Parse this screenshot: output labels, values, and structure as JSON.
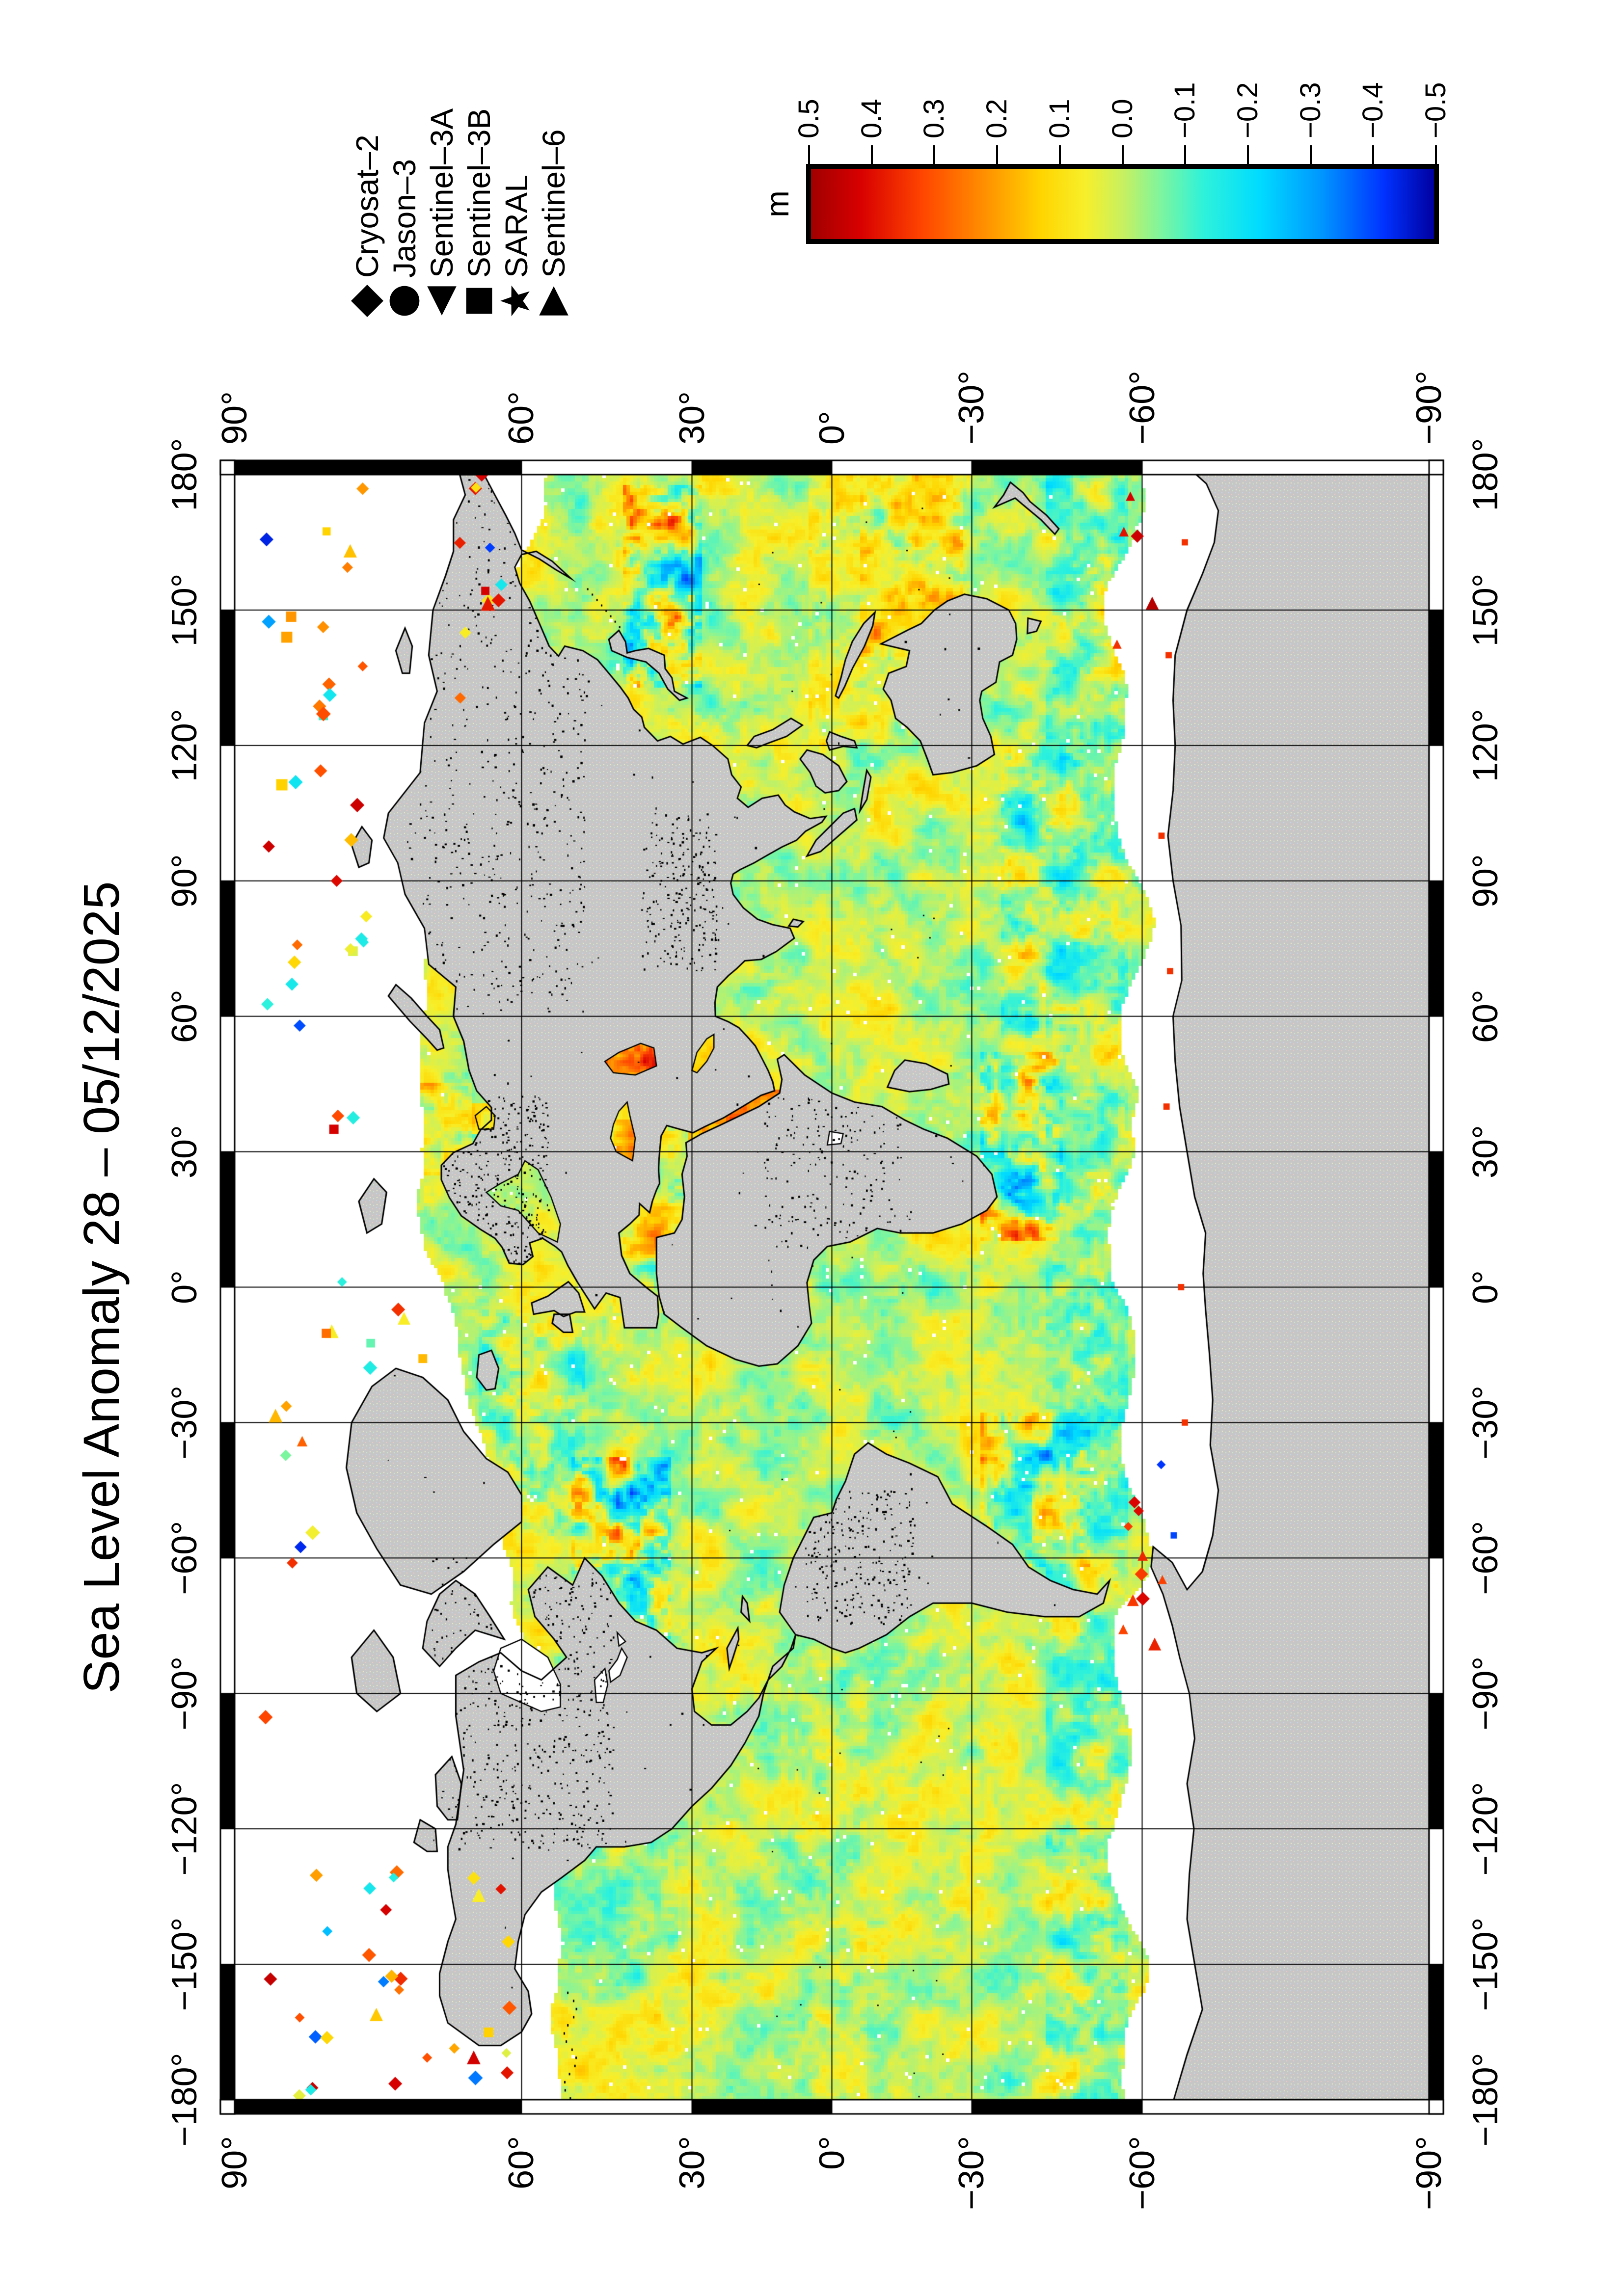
{
  "title": "Sea Level Anomaly 28 – 05/12/2025",
  "legend": {
    "entries": [
      {
        "symbol": "diamond-icon",
        "label": "Cryosat–2"
      },
      {
        "symbol": "circle-icon",
        "label": "Jason–3"
      },
      {
        "symbol": "triangle-left-icon",
        "label": "Sentinel–3A"
      },
      {
        "symbol": "square-icon",
        "label": "Sentinel–3B"
      },
      {
        "symbol": "star-icon",
        "label": "SARAL"
      },
      {
        "symbol": "triangle-right-icon",
        "label": "Sentinel–6"
      }
    ]
  },
  "colorbar": {
    "unit": "m",
    "max": 0.5,
    "min": -0.5,
    "tick_labels": [
      "0.5",
      "0.4",
      "0.3",
      "0.2",
      "0.1",
      "0.0",
      "−0.1",
      "−0.2",
      "−0.3",
      "−0.4",
      "−0.5"
    ],
    "palette": [
      {
        "v": -0.5,
        "c": "#0000a0"
      },
      {
        "v": -0.42,
        "c": "#0032ff"
      },
      {
        "v": -0.32,
        "c": "#0096ff"
      },
      {
        "v": -0.22,
        "c": "#00dcff"
      },
      {
        "v": -0.13,
        "c": "#2ef2da"
      },
      {
        "v": -0.06,
        "c": "#7ff59d"
      },
      {
        "v": 0.0,
        "c": "#c8f05f"
      },
      {
        "v": 0.06,
        "c": "#f7ef2a"
      },
      {
        "v": 0.13,
        "c": "#ffd500"
      },
      {
        "v": 0.22,
        "c": "#ff9100"
      },
      {
        "v": 0.32,
        "c": "#ff4600"
      },
      {
        "v": 0.42,
        "c": "#d80000"
      },
      {
        "v": 0.5,
        "c": "#a00000"
      }
    ]
  },
  "axes": {
    "lat_labels": [
      "90°",
      "60°",
      "30°",
      "0°",
      "−30°",
      "−60°",
      "−90°"
    ],
    "lon_labels": [
      "180°",
      "150°",
      "120°",
      "90°",
      "60°",
      "30°",
      "0°",
      "−30°",
      "−60°",
      "−90°",
      "−120°",
      "−150°",
      "−180°"
    ],
    "lat_range": [
      -90,
      90
    ],
    "lon_range": [
      -180,
      180
    ],
    "grid_interval_deg": 30
  },
  "map": {
    "land_color": "#c6c6c6",
    "no_data_color": "#ffffff",
    "coast_color": "#000000",
    "grid_color": "#000000",
    "frame_colors": [
      "#000000",
      "#ffffff"
    ]
  }
}
